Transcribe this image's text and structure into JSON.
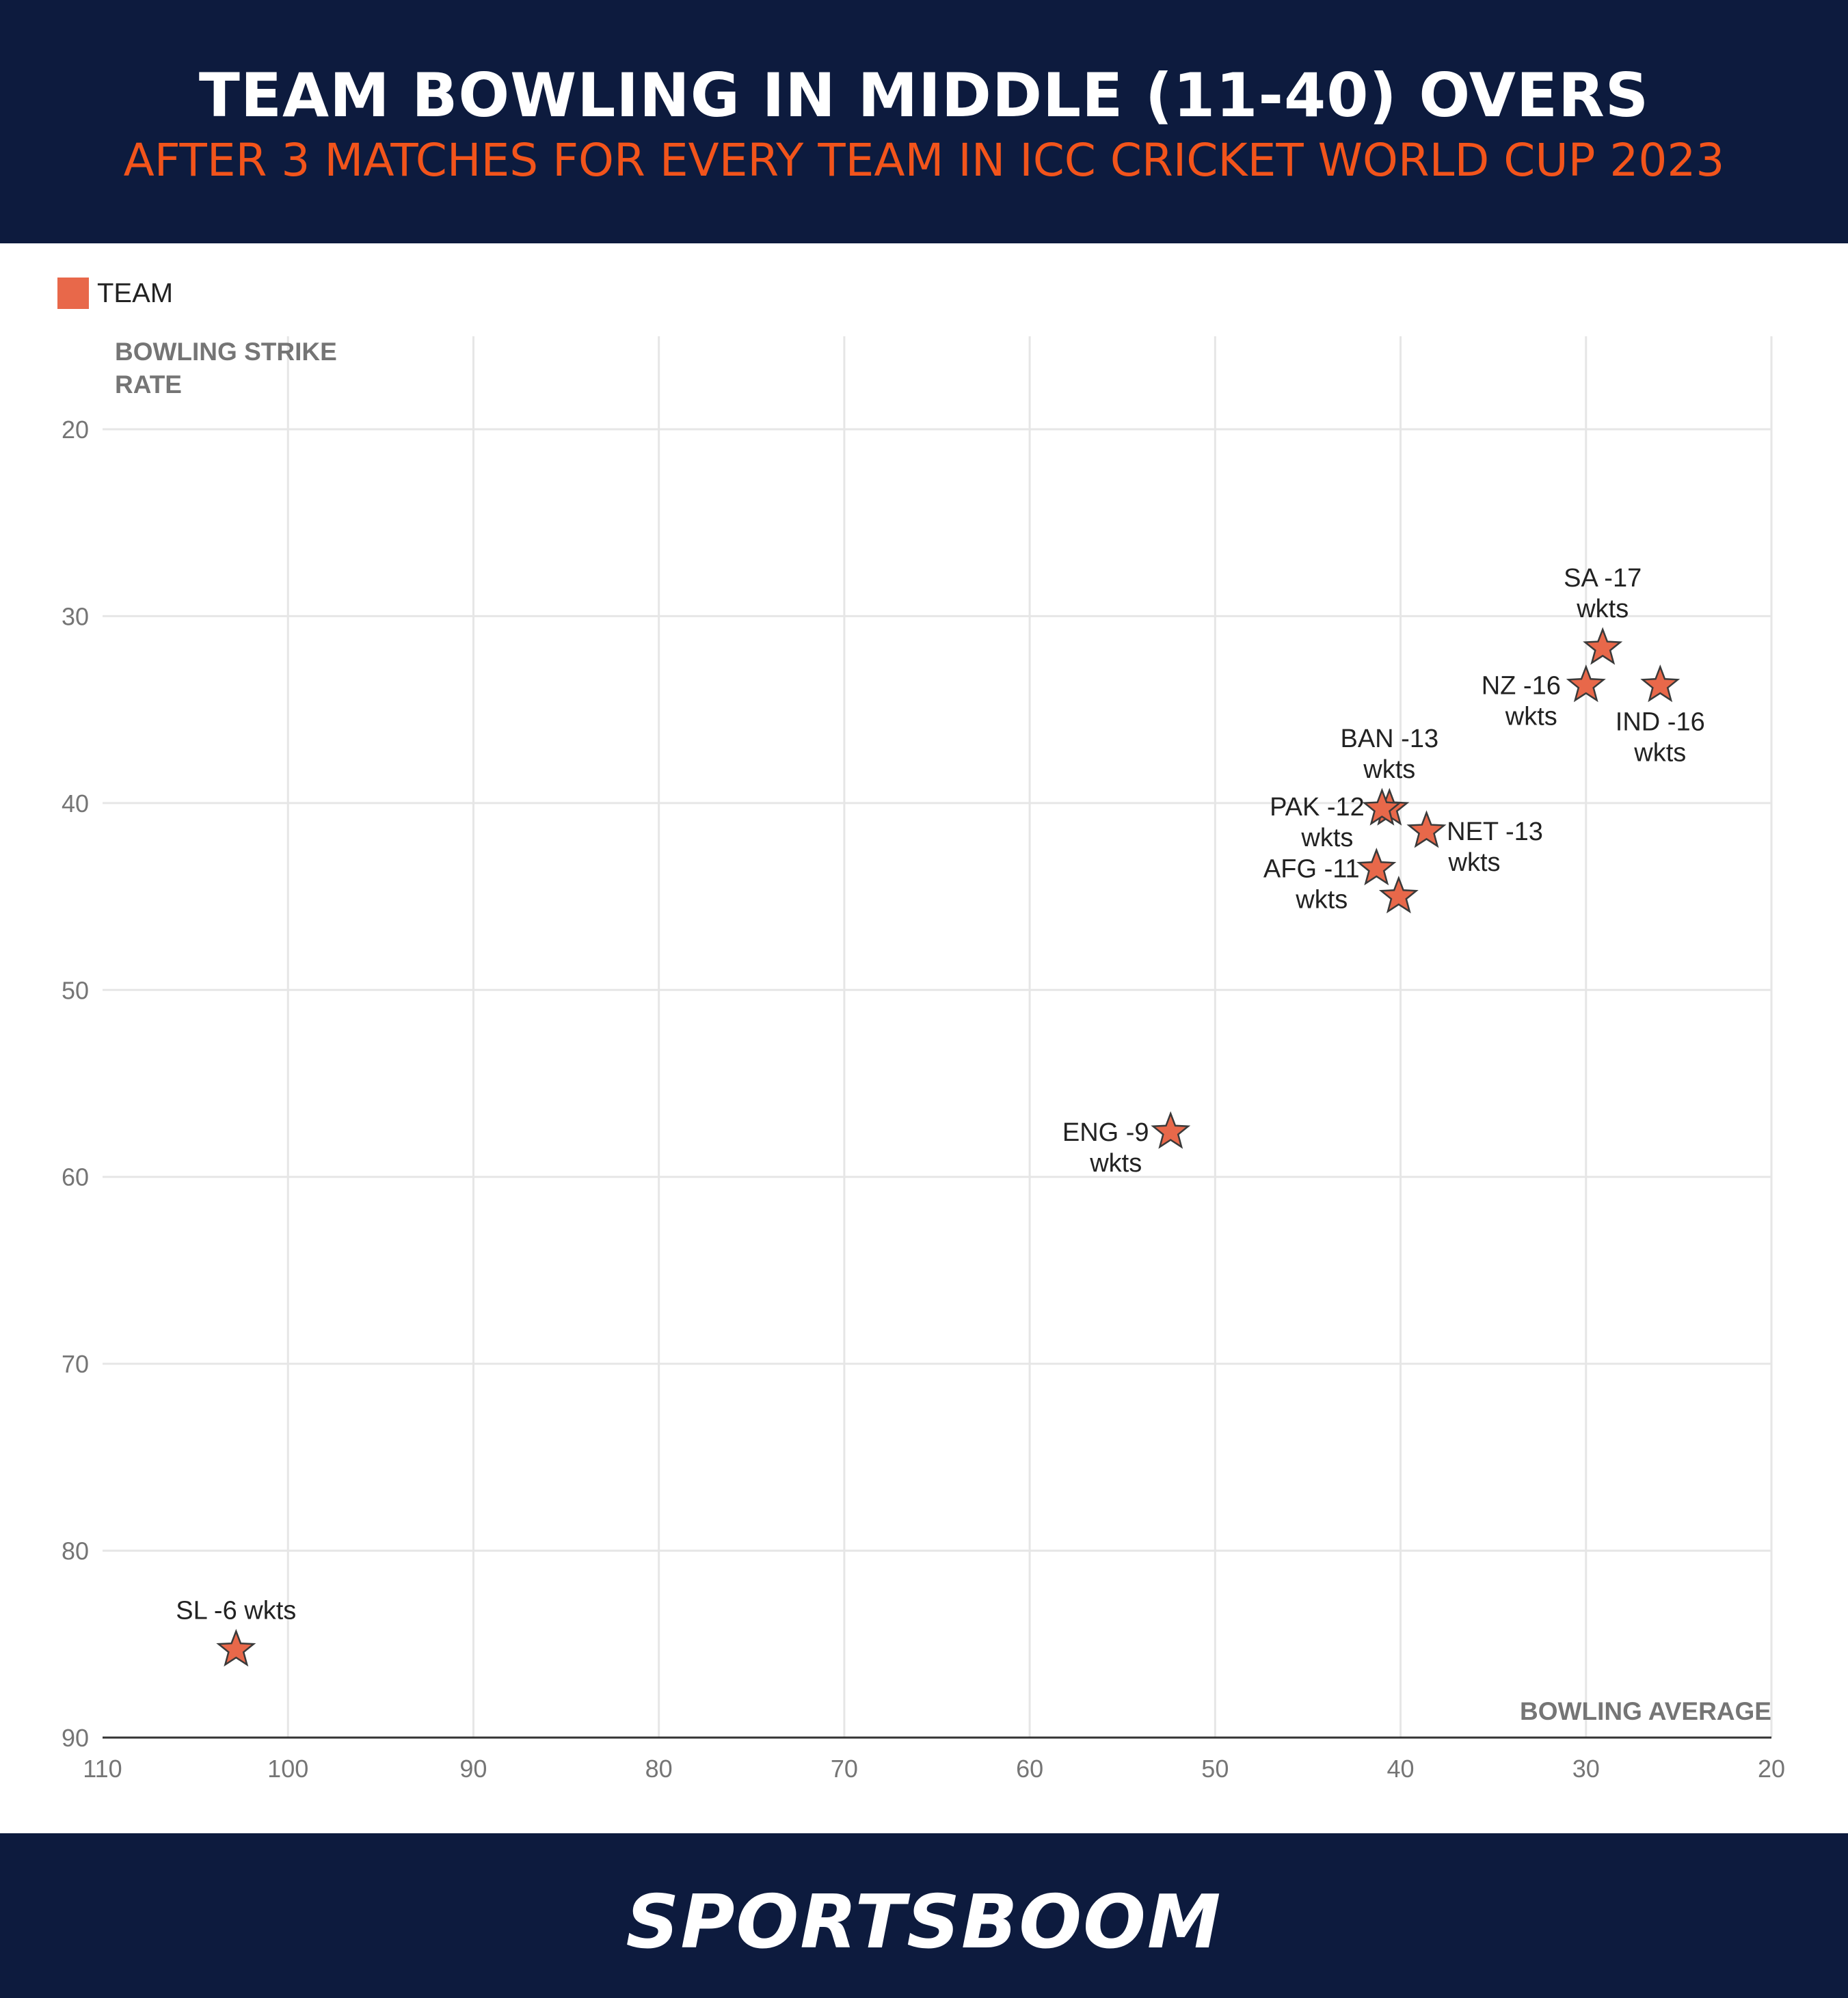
{
  "header": {
    "title": "TEAM BOWLING IN MIDDLE (11-40) OVERS",
    "subtitle": "AFTER 3 MATCHES FOR EVERY TEAM IN ICC CRICKET WORLD CUP 2023"
  },
  "footer": {
    "brand": "SPORTSBOOM"
  },
  "colors": {
    "header_bg": "#0d1b3e",
    "subtitle": "#f2541b",
    "marker": "#e8684a",
    "grid": "#e6e6e6"
  },
  "chart_data": {
    "type": "scatter",
    "legend": {
      "label": "TEAM",
      "placement": "top-left"
    },
    "xlabel": "BOWLING AVERAGE",
    "ylabel_lines": [
      "BOWLING STRIKE",
      "RATE"
    ],
    "xlim": [
      110,
      20
    ],
    "ylim": [
      90,
      15
    ],
    "x_ticks": [
      110,
      100,
      90,
      80,
      70,
      60,
      50,
      40,
      30,
      20
    ],
    "y_ticks": [
      20,
      30,
      40,
      50,
      60,
      70,
      80,
      90
    ],
    "x_reversed": true,
    "y_reversed": true,
    "grid": true,
    "marker": "star",
    "points": [
      {
        "team": "SA",
        "x": 29.1,
        "y": 31.7,
        "label_lines": [
          "SA -17",
          "wkts"
        ],
        "label_pos": "above"
      },
      {
        "team": "NZ",
        "x": 30.0,
        "y": 33.7,
        "label_lines": [
          "NZ -16",
          "wkts"
        ],
        "label_pos": "left"
      },
      {
        "team": "IND",
        "x": 26.0,
        "y": 33.7,
        "label_lines": [
          "IND -16",
          "wkts"
        ],
        "label_pos": "below"
      },
      {
        "team": "BAN",
        "x": 40.6,
        "y": 40.3,
        "label_lines": [
          "BAN -13",
          "wkts"
        ],
        "label_pos": "above"
      },
      {
        "team": "PAK",
        "x": 41.0,
        "y": 40.3,
        "label_lines": [
          "PAK -12",
          "wkts"
        ],
        "label_pos": "left"
      },
      {
        "team": "NET",
        "x": 38.6,
        "y": 41.5,
        "label_lines": [
          "NET -13",
          "wkts"
        ],
        "label_pos": "right"
      },
      {
        "team": "AFG",
        "x": 41.3,
        "y": 43.5,
        "label_lines": [
          "AFG -11",
          "wkts"
        ],
        "label_pos": "left"
      },
      {
        "team": "",
        "x": 40.1,
        "y": 45.0,
        "label_lines": [],
        "label_pos": "none"
      },
      {
        "team": "ENG",
        "x": 52.4,
        "y": 57.6,
        "label_lines": [
          "ENG -9",
          "wkts"
        ],
        "label_pos": "left"
      },
      {
        "team": "SL",
        "x": 102.8,
        "y": 85.3,
        "label_lines": [
          "SL -6 wkts"
        ],
        "label_pos": "above"
      }
    ]
  }
}
